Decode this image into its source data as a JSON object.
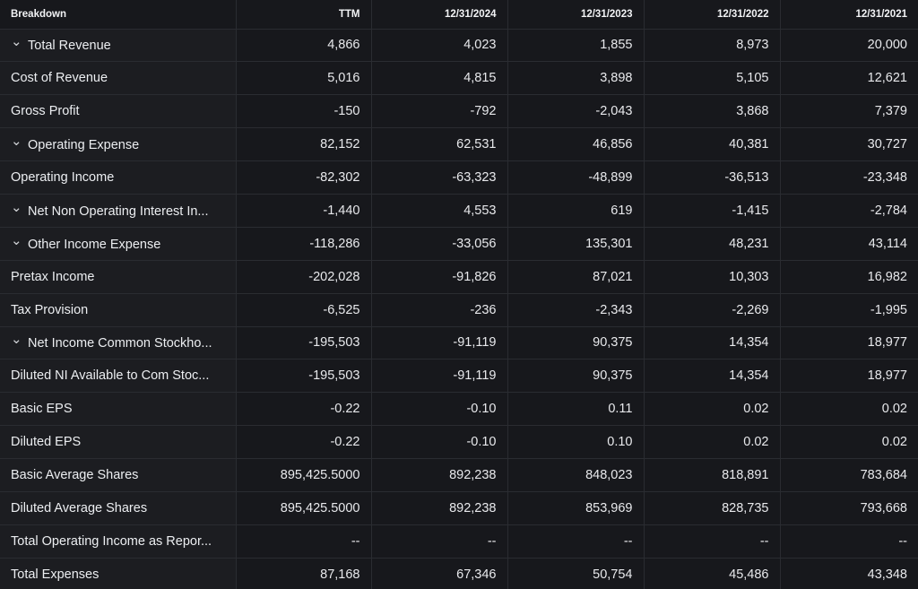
{
  "table": {
    "header_label": "Breakdown",
    "columns": [
      "TTM",
      "12/31/2024",
      "12/31/2023",
      "12/31/2022",
      "12/31/2021"
    ],
    "chevron_icon": "chevron-down-icon",
    "rows": [
      {
        "label": "Total Revenue",
        "expandable": true,
        "values": [
          "4,866",
          "4,023",
          "1,855",
          "8,973",
          "20,000"
        ]
      },
      {
        "label": "Cost of Revenue",
        "expandable": false,
        "values": [
          "5,016",
          "4,815",
          "3,898",
          "5,105",
          "12,621"
        ]
      },
      {
        "label": "Gross Profit",
        "expandable": false,
        "values": [
          "-150",
          "-792",
          "-2,043",
          "3,868",
          "7,379"
        ]
      },
      {
        "label": "Operating Expense",
        "expandable": true,
        "values": [
          "82,152",
          "62,531",
          "46,856",
          "40,381",
          "30,727"
        ]
      },
      {
        "label": "Operating Income",
        "expandable": false,
        "values": [
          "-82,302",
          "-63,323",
          "-48,899",
          "-36,513",
          "-23,348"
        ]
      },
      {
        "label": "Net Non Operating Interest In...",
        "expandable": true,
        "values": [
          "-1,440",
          "4,553",
          "619",
          "-1,415",
          "-2,784"
        ]
      },
      {
        "label": "Other Income Expense",
        "expandable": true,
        "values": [
          "-118,286",
          "-33,056",
          "135,301",
          "48,231",
          "43,114"
        ]
      },
      {
        "label": "Pretax Income",
        "expandable": false,
        "values": [
          "-202,028",
          "-91,826",
          "87,021",
          "10,303",
          "16,982"
        ]
      },
      {
        "label": "Tax Provision",
        "expandable": false,
        "values": [
          "-6,525",
          "-236",
          "-2,343",
          "-2,269",
          "-1,995"
        ]
      },
      {
        "label": "Net Income Common Stockho...",
        "expandable": true,
        "values": [
          "-195,503",
          "-91,119",
          "90,375",
          "14,354",
          "18,977"
        ]
      },
      {
        "label": "Diluted NI Available to Com Stoc...",
        "expandable": false,
        "values": [
          "-195,503",
          "-91,119",
          "90,375",
          "14,354",
          "18,977"
        ]
      },
      {
        "label": "Basic EPS",
        "expandable": false,
        "values": [
          "-0.22",
          "-0.10",
          "0.11",
          "0.02",
          "0.02"
        ]
      },
      {
        "label": "Diluted EPS",
        "expandable": false,
        "values": [
          "-0.22",
          "-0.10",
          "0.10",
          "0.02",
          "0.02"
        ]
      },
      {
        "label": "Basic Average Shares",
        "expandable": false,
        "values": [
          "895,425.5000",
          "892,238",
          "848,023",
          "818,891",
          "783,684"
        ]
      },
      {
        "label": "Diluted Average Shares",
        "expandable": false,
        "values": [
          "895,425.5000",
          "892,238",
          "853,969",
          "828,735",
          "793,668"
        ]
      },
      {
        "label": "Total Operating Income as Repor...",
        "expandable": false,
        "values": [
          "--",
          "--",
          "--",
          "--",
          "--"
        ]
      },
      {
        "label": "Total Expenses",
        "expandable": false,
        "values": [
          "87,168",
          "67,346",
          "50,754",
          "45,486",
          "43,348"
        ]
      }
    ]
  }
}
